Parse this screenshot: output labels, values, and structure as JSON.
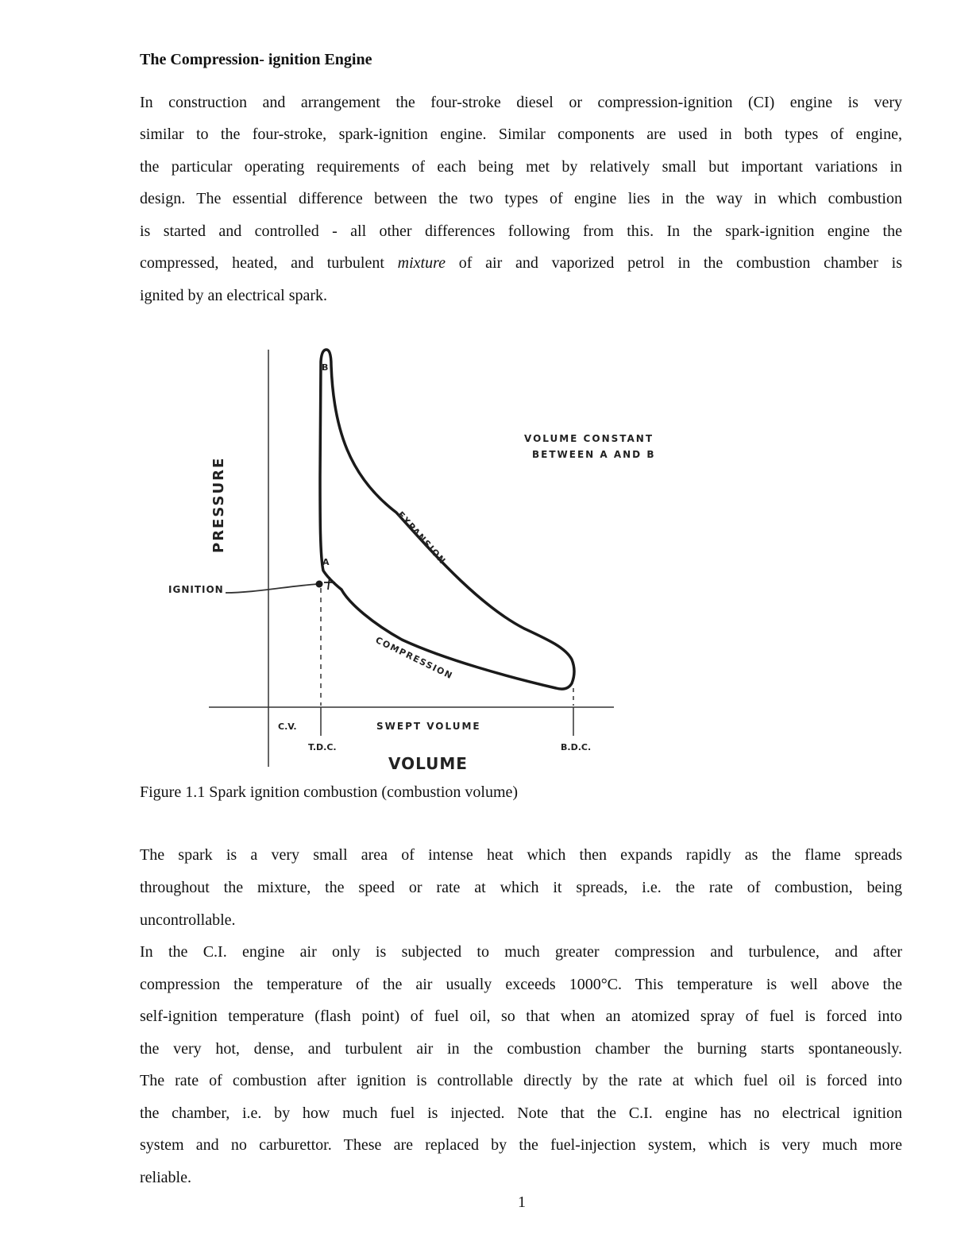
{
  "title": "The Compression- ignition Engine",
  "para1": {
    "lines": [
      "In construction and arrangement the four-stroke diesel or compression-ignition (CI) engine is very",
      "similar to the four-stroke, spark-ignition engine. Similar components are used in both types of engine,",
      "the particular operating requirements of each being met by relatively small but important variations in",
      "design. The essential difference between the two types of engine lies in the way in which combustion",
      "is started and controlled - all other differences following from this. In the spark-ignition engine the"
    ],
    "line6_before": "compressed, heated, and turbulent ",
    "line6_italic": "mixture",
    "line6_after": " of air and vaporized petrol in the combustion chamber is",
    "line7": "ignited by an electrical spark."
  },
  "figure": {
    "y_axis_label": "PRESSURE",
    "x_axis_label": "VOLUME",
    "point_a": "A",
    "point_b": "B",
    "note_line1": "VOLUME CONSTANT",
    "note_line2": "BETWEEN A AND B",
    "ignition_label": "IGNITION",
    "expansion_label": "EXPANSION",
    "compression_label": "COMPRESSION",
    "cv_label": "C.V.",
    "swept_volume_label": "SWEPT VOLUME",
    "tdc_label": "T.D.C.",
    "bdc_label": "B.D.C.",
    "caption": "Figure 1.1 Spark ignition combustion (combustion volume)"
  },
  "para2": {
    "lines": [
      "The spark is a very small area of intense heat which then expands rapidly as the flame spreads",
      "throughout the mixture, the speed or rate at which it spreads, i.e. the rate of combustion, being",
      "uncontrollable."
    ]
  },
  "para3": {
    "lines": [
      "In the C.I. engine air only is subjected to much greater compression and turbulence, and after",
      "compression the temperature of the air usually exceeds 1000°C. This temperature is well above the",
      "self-ignition temperature (flash point) of fuel oil, so that when an atomized spray of fuel is forced into",
      "the very hot, dense, and turbulent air in the combustion chamber the burning starts spontaneously.",
      "The rate of combustion after ignition is controllable directly by the rate at which fuel oil is forced into",
      "the chamber, i.e. by how much fuel is injected. Note that the C.I. engine has no electrical ignition",
      "system and no carburettor. These are replaced by the fuel-injection system, which is very much more",
      "reliable."
    ]
  },
  "page_number": "1"
}
